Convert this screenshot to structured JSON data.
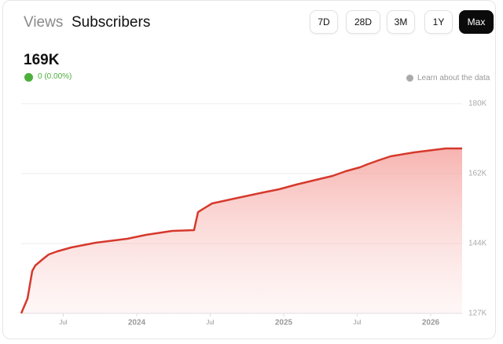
{
  "header": {
    "tabs": [
      "Views",
      "Subscribers"
    ],
    "ranges": [
      "7D",
      "28D",
      "3M",
      "1Y",
      "Max"
    ],
    "total": "169K",
    "change": "0 (0.00%)",
    "info": "Learn about the data"
  },
  "chart_data": {
    "type": "line",
    "color": "#d6392c",
    "grid": true,
    "step": false,
    "x": [
      2023.214,
      2023.257,
      2023.289,
      2023.31,
      2023.348,
      2023.374,
      2023.401,
      2023.46,
      2023.556,
      2023.722,
      2023.936,
      2024.064,
      2024.241,
      2024.39,
      2024.417,
      2024.46,
      2024.513,
      2024.636,
      2024.861,
      2024.968,
      2025.086,
      2025.219,
      2025.332,
      2025.422,
      2025.519,
      2025.572,
      2025.647,
      2025.727,
      2025.888,
      2026.102,
      2026.214
    ],
    "values": [
      126600,
      130400,
      137400,
      138800,
      140000,
      140800,
      141600,
      142400,
      143400,
      144600,
      145600,
      146600,
      147600,
      147800,
      152400,
      153400,
      154600,
      155600,
      157400,
      158200,
      159400,
      160600,
      161600,
      162800,
      163800,
      164600,
      165600,
      166600,
      167600,
      168600,
      168600
    ],
    "xlim": [
      2023.214,
      2026.214
    ],
    "xticks": [
      {
        "value": 2023.5,
        "label": "Jul"
      },
      2024,
      {
        "value": 2024.5,
        "label": "Jul"
      },
      2025,
      {
        "value": 2025.5,
        "label": "Jul"
      },
      2026
    ],
    "ylim": [
      126600,
      180000
    ],
    "yticks": [
      {
        "value": 126600,
        "label": "127K"
      },
      {
        "value": 144400,
        "label": "144K"
      },
      {
        "value": 162200,
        "label": "162K"
      },
      {
        "value": 180000,
        "label": "180K"
      }
    ]
  }
}
